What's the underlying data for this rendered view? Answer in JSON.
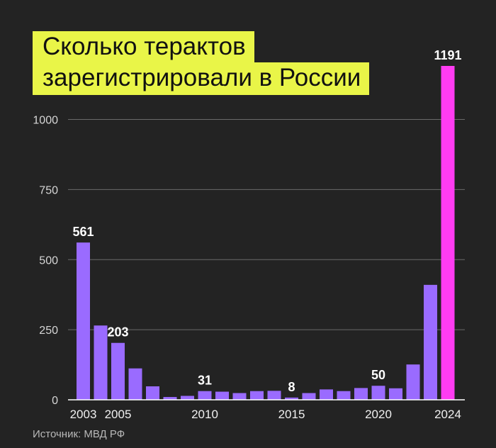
{
  "title_line1": "Сколько терактов",
  "title_line2": "зарегистрировали в России",
  "source": "Источник: МВД РФ",
  "colors": {
    "background": "#232323",
    "bar": "#9a6bff",
    "highlight": "#ff3cf2",
    "title_bg": "#e9f548"
  },
  "chart_data": {
    "type": "bar",
    "title": "Сколько терактов зарегистрировали в России",
    "xlabel": "",
    "ylabel": "",
    "categories": [
      "2003",
      "2004",
      "2005",
      "2006",
      "2007",
      "2008",
      "2009",
      "2010",
      "2011",
      "2012",
      "2013",
      "2014",
      "2015",
      "2016",
      "2017",
      "2018",
      "2019",
      "2020",
      "2021",
      "2022",
      "2023",
      "2024"
    ],
    "values": [
      561,
      265,
      203,
      112,
      48,
      10,
      14,
      31,
      29,
      24,
      31,
      32,
      8,
      24,
      37,
      31,
      42,
      50,
      41,
      126,
      410,
      1191
    ],
    "highlight_index": 21,
    "x_tick_labels": [
      "2003",
      "2005",
      "2010",
      "2015",
      "2020",
      "2024"
    ],
    "data_labels": {
      "2003": "561",
      "2005": "203",
      "2010": "31",
      "2015": "8",
      "2020": "50",
      "2024": "1191"
    },
    "y_ticks": [
      0,
      250,
      500,
      750,
      1000
    ],
    "ylim": [
      0,
      1191
    ],
    "grid": true
  }
}
